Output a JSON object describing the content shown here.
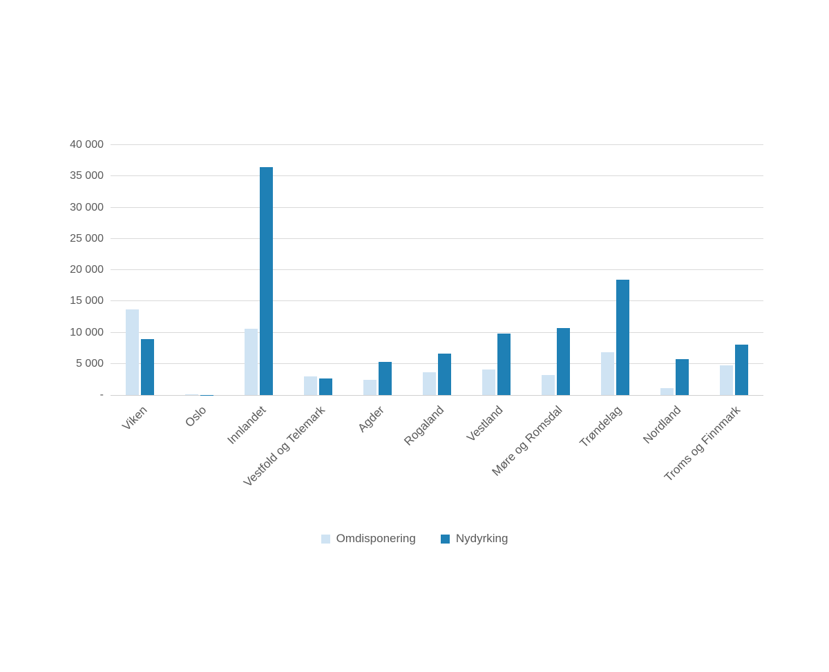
{
  "chart_data": {
    "type": "bar",
    "title": "",
    "xlabel": "",
    "ylabel": "",
    "categories": [
      "Viken",
      "Oslo",
      "Innlandet",
      "Vestfold og Telemark",
      "Agder",
      "Rogaland",
      "Vestland",
      "Møre og Romsdal",
      "Trøndelag",
      "Nordland",
      "Troms og Finnmark"
    ],
    "series": [
      {
        "name": "Omdisponering",
        "color": "#cfe3f3",
        "values": [
          13700,
          100,
          10600,
          3000,
          2400,
          3700,
          4100,
          3200,
          6900,
          1100,
          4700
        ]
      },
      {
        "name": "Nydyrking",
        "color": "#1f80b5",
        "values": [
          9000,
          50,
          36500,
          2600,
          5300,
          6600,
          9800,
          10700,
          18400,
          5700,
          8100
        ]
      }
    ],
    "ylim": [
      0,
      40000
    ],
    "ytick_step": 5000,
    "ytick_labels": [
      "-",
      "5 000",
      "10 000",
      "15 000",
      "20 000",
      "25 000",
      "30 000",
      "35 000",
      "40 000"
    ],
    "grid": true,
    "legend_position": "bottom"
  },
  "colors": {
    "background": "#ffffff",
    "gridline": "#d9d9d9",
    "axis_line": "#d0d0d0",
    "text": "#595959",
    "series_light": "#cfe3f3",
    "series_dark": "#1f80b5"
  }
}
